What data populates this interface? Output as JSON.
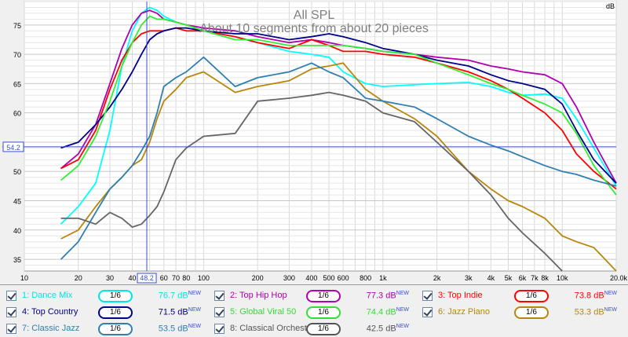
{
  "chart_data": {
    "type": "line",
    "title": "All SPL",
    "subtitle": "About 10 segments from about 20 pieces",
    "ylabel": "dB",
    "xunit": "Hz",
    "xscale": "log",
    "xlim": [
      10,
      20000
    ],
    "ylim": [
      33,
      79
    ],
    "grid": true,
    "xticks": [
      "10",
      "20",
      "30",
      "40",
      "48.2",
      "60",
      "70",
      "80",
      "100",
      "200",
      "300",
      "400",
      "500",
      "600",
      "800",
      "1k",
      "2k",
      "3k",
      "4k",
      "5k",
      "6k",
      "7k",
      "8k",
      "10k",
      "20.0k Hz"
    ],
    "yticks": [
      "75",
      "70",
      "65",
      "60",
      "54.2",
      "50",
      "45",
      "40",
      "35"
    ],
    "cursor": {
      "x": 48.2,
      "y": 54.2,
      "x_label": "48.2",
      "y_label": "54.2"
    },
    "series": [
      {
        "name": "Dance Mix",
        "color": "#00ffff",
        "x": [
          16,
          20,
          25,
          30,
          35,
          40,
          45,
          50,
          55,
          60,
          70,
          80,
          100,
          150,
          200,
          300,
          400,
          500,
          600,
          800,
          1000,
          1500,
          2000,
          3000,
          4000,
          5000,
          6000,
          8000,
          10000,
          12000,
          15000,
          20000
        ],
        "y": [
          41,
          44,
          48,
          57,
          68,
          74,
          77,
          78,
          77.5,
          76.5,
          75.5,
          75,
          74,
          73,
          72,
          70.5,
          70,
          69.5,
          67,
          65,
          64.5,
          64.8,
          65,
          65.2,
          64.5,
          63.5,
          63,
          63.2,
          62.5,
          59,
          54,
          47.5
        ]
      },
      {
        "name": "Top Hip Hop",
        "color": "#b000b0",
        "x": [
          16,
          20,
          25,
          30,
          35,
          40,
          45,
          50,
          55,
          60,
          70,
          80,
          100,
          150,
          200,
          300,
          400,
          500,
          600,
          800,
          1000,
          1500,
          2000,
          3000,
          4000,
          5000,
          6000,
          8000,
          10000,
          12000,
          15000,
          20000
        ],
        "y": [
          50.5,
          53,
          58,
          65,
          71,
          75,
          77,
          77.5,
          77,
          76,
          75.5,
          75,
          74.5,
          74,
          73,
          72,
          72.5,
          72,
          71.5,
          71,
          70.5,
          70,
          69.5,
          69,
          68,
          67.5,
          67,
          66.5,
          65,
          61,
          55,
          48
        ]
      },
      {
        "name": "Top Indie",
        "color": "#ff0000",
        "x": [
          16,
          20,
          25,
          30,
          35,
          40,
          45,
          50,
          55,
          60,
          70,
          80,
          100,
          150,
          200,
          300,
          400,
          500,
          600,
          800,
          1000,
          1500,
          2000,
          3000,
          4000,
          5000,
          6000,
          8000,
          10000,
          12000,
          15000,
          20000
        ],
        "y": [
          50.5,
          52,
          57,
          64,
          69,
          72,
          73.5,
          74,
          74,
          74,
          74.5,
          74,
          74,
          73,
          72,
          71,
          72.5,
          71.5,
          70.5,
          70.5,
          70,
          69.5,
          68.5,
          67,
          65.5,
          64,
          62.5,
          60,
          57,
          53,
          50,
          47
        ]
      },
      {
        "name": "Top Country",
        "color": "#00008b",
        "x": [
          16,
          20,
          25,
          30,
          35,
          40,
          45,
          50,
          55,
          60,
          70,
          80,
          100,
          150,
          200,
          300,
          400,
          500,
          600,
          800,
          1000,
          1500,
          2000,
          3000,
          4000,
          5000,
          6000,
          8000,
          10000,
          12000,
          15000,
          20000
        ],
        "y": [
          54,
          55,
          58,
          61,
          64,
          67,
          70,
          72.5,
          73.5,
          74,
          74.5,
          74.5,
          74,
          73.5,
          73.5,
          72.5,
          73,
          73.5,
          73,
          72,
          71,
          70,
          69,
          68,
          66.5,
          65.5,
          65,
          64,
          61.5,
          57,
          52,
          48
        ]
      },
      {
        "name": "Global Viral 50",
        "color": "#33ee33",
        "x": [
          16,
          20,
          25,
          30,
          35,
          40,
          45,
          50,
          55,
          60,
          70,
          80,
          100,
          150,
          200,
          300,
          400,
          500,
          600,
          800,
          1000,
          1500,
          2000,
          3000,
          4000,
          5000,
          6000,
          8000,
          10000,
          12000,
          15000,
          20000
        ],
        "y": [
          48.5,
          51,
          56,
          62,
          68,
          72,
          75,
          76.5,
          76,
          76,
          75.5,
          75,
          74,
          72.5,
          72.5,
          71.5,
          71.5,
          71.5,
          71.5,
          71,
          70.5,
          70,
          68.5,
          66.5,
          65,
          64,
          63,
          61.5,
          60,
          56.5,
          51,
          46
        ]
      },
      {
        "name": "Jazz Piano",
        "color": "#b8860b",
        "x": [
          16,
          20,
          25,
          30,
          35,
          40,
          45,
          50,
          55,
          60,
          70,
          80,
          100,
          150,
          200,
          300,
          400,
          500,
          600,
          800,
          1000,
          1500,
          2000,
          3000,
          4000,
          5000,
          6000,
          8000,
          10000,
          12000,
          15000,
          20000
        ],
        "y": [
          38.5,
          40,
          44,
          47,
          49,
          51,
          52,
          55,
          59,
          62,
          64,
          66,
          67,
          63.5,
          64.5,
          65.5,
          67.5,
          68,
          68.5,
          64,
          62,
          59,
          56,
          50,
          47,
          45,
          44,
          42,
          39,
          38,
          37,
          33
        ]
      },
      {
        "name": "Classic Jazz",
        "color": "#2f7fb0",
        "x": [
          16,
          20,
          25,
          30,
          35,
          40,
          45,
          50,
          55,
          60,
          70,
          80,
          100,
          150,
          200,
          300,
          400,
          500,
          600,
          800,
          1000,
          1500,
          2000,
          3000,
          4000,
          5000,
          6000,
          8000,
          10000,
          12000,
          15000,
          20000
        ],
        "y": [
          35,
          38,
          43,
          47,
          49,
          51,
          53.5,
          56,
          60,
          64.5,
          66,
          67,
          69.5,
          64.5,
          66,
          67,
          68.5,
          67,
          66,
          62.5,
          62,
          61,
          59,
          56,
          54.5,
          53.5,
          52.5,
          51,
          50,
          49.5,
          48.5,
          47.5
        ]
      },
      {
        "name": "Classical Orchestra",
        "color": "#666666",
        "x": [
          16,
          20,
          25,
          30,
          35,
          40,
          45,
          50,
          55,
          60,
          70,
          80,
          100,
          150,
          200,
          300,
          400,
          500,
          600,
          800,
          1000,
          1500,
          2000,
          3000,
          4000,
          5000,
          6000,
          8000,
          10000
        ],
        "y": [
          42,
          42,
          41,
          43,
          42,
          40.5,
          41,
          42.5,
          44,
          46.5,
          52,
          54,
          56,
          56.5,
          62,
          62.5,
          63,
          63.5,
          63,
          62,
          60,
          58.5,
          55,
          50,
          46,
          42,
          39.5,
          36,
          33
        ]
      }
    ]
  },
  "legend": {
    "items": [
      {
        "label": "1: Dance Mix",
        "smoothing": "1/6",
        "spl": "76.7 dB",
        "badge": "NEW",
        "color": "#00e5e5"
      },
      {
        "label": "2: Top Hip Hop",
        "smoothing": "1/6",
        "spl": "77.3 dB",
        "badge": "NEW",
        "color": "#b000b0"
      },
      {
        "label": "3: Top Indie",
        "smoothing": "1/6",
        "spl": "73.8 dB",
        "badge": "NEW",
        "color": "#ff0000"
      },
      {
        "label": "4: Top Country",
        "smoothing": "1/6",
        "spl": "71.5 dB",
        "badge": "NEW",
        "color": "#00008b"
      },
      {
        "label": "5: Global Viral 50",
        "smoothing": "1/6",
        "spl": "74.4 dB",
        "badge": "NEW",
        "color": "#33dd33"
      },
      {
        "label": "6: Jazz Piano",
        "smoothing": "1/6",
        "spl": "53.3 dB",
        "badge": "NEW",
        "color": "#b8860b"
      },
      {
        "label": "7: Classic Jazz",
        "smoothing": "1/6",
        "spl": "53.5 dB",
        "badge": "NEW",
        "color": "#2f7fb0"
      },
      {
        "label": "8: Classical Orchestra",
        "smoothing": "1/6",
        "spl": "42.5 dB",
        "badge": "NEW",
        "color": "#555555"
      }
    ]
  }
}
